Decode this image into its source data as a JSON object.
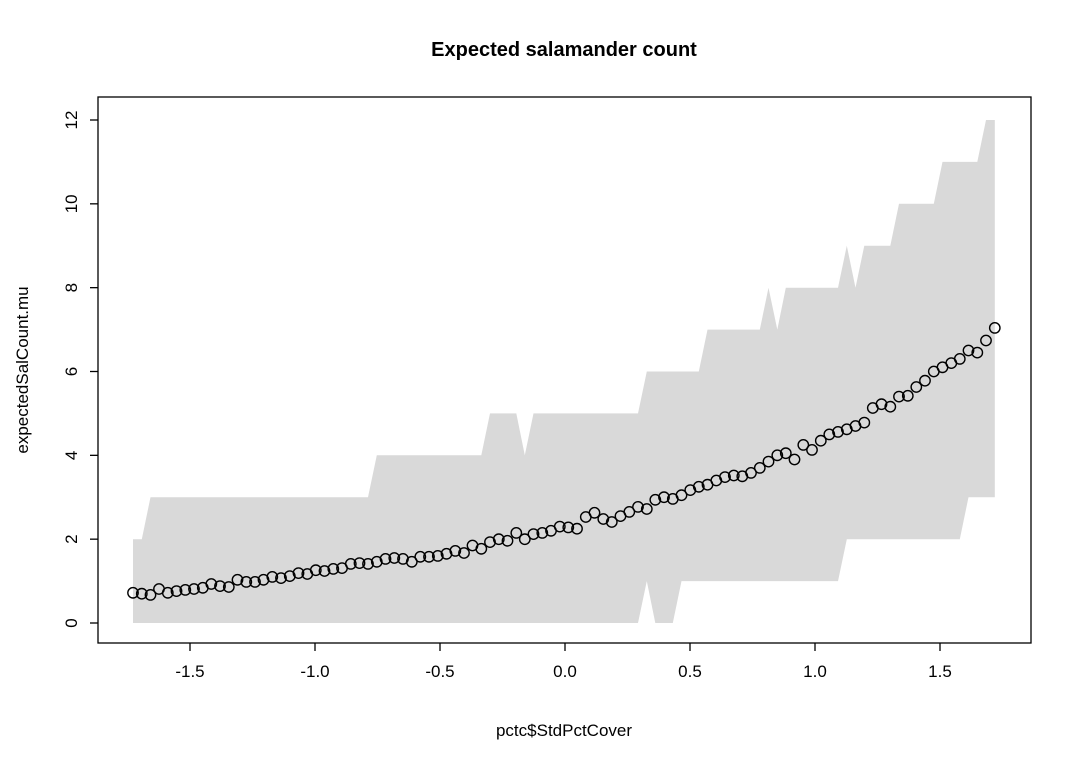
{
  "title": "Expected salamander count",
  "xlabel": "pctc$StdPctCover",
  "ylabel": "expectedSalCount.mu",
  "colors": {
    "band": "#d9d9d9",
    "point_stroke": "#000000",
    "axis": "#000000",
    "background": "#ffffff"
  },
  "axes": {
    "x_ticks": {
      "values": [
        -1.5,
        -1.0,
        -0.5,
        0.0,
        0.5,
        1.0,
        1.5
      ],
      "labels": [
        "-1.5",
        "-1.0",
        "-0.5",
        "0.0",
        "0.5",
        "1.0",
        "1.5"
      ]
    },
    "y_ticks": {
      "values": [
        0,
        2,
        4,
        6,
        8,
        10,
        12
      ],
      "labels": [
        "0",
        "2",
        "4",
        "6",
        "8",
        "10",
        "12"
      ]
    }
  },
  "chart_data": {
    "type": "scatter",
    "title": "Expected salamander count",
    "xlabel": "pctc$StdPctCover",
    "ylabel": "expectedSalCount.mu",
    "xlim": [
      -1.87,
      1.86
    ],
    "ylim": [
      -0.48,
      12.55
    ],
    "grid": false,
    "legend": false,
    "marker": "open-circle",
    "band_style": "solid gray step polygon behind points",
    "x": [
      -1.728,
      -1.693,
      -1.658,
      -1.624,
      -1.589,
      -1.554,
      -1.519,
      -1.484,
      -1.449,
      -1.415,
      -1.38,
      -1.345,
      -1.31,
      -1.275,
      -1.24,
      -1.206,
      -1.171,
      -1.136,
      -1.101,
      -1.066,
      -1.031,
      -0.997,
      -0.962,
      -0.927,
      -0.892,
      -0.857,
      -0.822,
      -0.788,
      -0.753,
      -0.718,
      -0.683,
      -0.648,
      -0.613,
      -0.579,
      -0.544,
      -0.509,
      -0.474,
      -0.439,
      -0.404,
      -0.37,
      -0.335,
      -0.3,
      -0.265,
      -0.23,
      -0.195,
      -0.161,
      -0.126,
      -0.091,
      -0.056,
      -0.021,
      0.013,
      0.048,
      0.083,
      0.118,
      0.153,
      0.187,
      0.222,
      0.257,
      0.292,
      0.327,
      0.361,
      0.396,
      0.431,
      0.466,
      0.501,
      0.535,
      0.57,
      0.605,
      0.64,
      0.675,
      0.709,
      0.744,
      0.779,
      0.814,
      0.849,
      0.883,
      0.918,
      0.953,
      0.988,
      1.023,
      1.057,
      1.092,
      1.127,
      1.162,
      1.197,
      1.231,
      1.266,
      1.301,
      1.336,
      1.371,
      1.405,
      1.44,
      1.475,
      1.51,
      1.545,
      1.579,
      1.614,
      1.649,
      1.684,
      1.719
    ],
    "series": [
      {
        "name": "expectedSalCount.mu",
        "values": [
          0.72,
          0.7,
          0.67,
          0.81,
          0.72,
          0.76,
          0.79,
          0.81,
          0.84,
          0.93,
          0.88,
          0.86,
          1.03,
          0.98,
          0.98,
          1.03,
          1.1,
          1.07,
          1.12,
          1.19,
          1.17,
          1.26,
          1.24,
          1.29,
          1.31,
          1.41,
          1.43,
          1.41,
          1.46,
          1.53,
          1.55,
          1.53,
          1.46,
          1.58,
          1.58,
          1.6,
          1.65,
          1.72,
          1.67,
          1.85,
          1.77,
          1.93,
          2.0,
          1.96,
          2.15,
          2.0,
          2.12,
          2.15,
          2.2,
          2.3,
          2.28,
          2.25,
          2.53,
          2.63,
          2.48,
          2.41,
          2.55,
          2.65,
          2.77,
          2.72,
          2.94,
          3.0,
          2.96,
          3.05,
          3.17,
          3.25,
          3.3,
          3.4,
          3.48,
          3.52,
          3.5,
          3.58,
          3.7,
          3.85,
          4.0,
          4.05,
          3.9,
          4.25,
          4.13,
          4.35,
          4.5,
          4.56,
          4.62,
          4.7,
          4.78,
          5.13,
          5.22,
          5.16,
          5.4,
          5.42,
          5.63,
          5.78,
          6.0,
          6.1,
          6.2,
          6.3,
          6.5,
          6.45,
          6.74,
          7.04
        ]
      },
      {
        "name": "band upper",
        "values": [
          2,
          2,
          3,
          3,
          3,
          3,
          3,
          3,
          3,
          3,
          3,
          3,
          3,
          3,
          3,
          3,
          3,
          3,
          3,
          3,
          3,
          3,
          3,
          3,
          3,
          3,
          3,
          3,
          4,
          4,
          4,
          4,
          4,
          4,
          4,
          4,
          4,
          4,
          4,
          4,
          4,
          5,
          5,
          5,
          5,
          4,
          5,
          5,
          5,
          5,
          5,
          5,
          5,
          5,
          5,
          5,
          5,
          5,
          5,
          6,
          6,
          6,
          6,
          6,
          6,
          6,
          7,
          7,
          7,
          7,
          7,
          7,
          7,
          8,
          7,
          8,
          8,
          8,
          8,
          8,
          8,
          8,
          9,
          8,
          9,
          9,
          9,
          9,
          10,
          10,
          10,
          10,
          10,
          11,
          11,
          11,
          11,
          11,
          12,
          12
        ]
      },
      {
        "name": "band lower",
        "values": [
          0,
          0,
          0,
          0,
          0,
          0,
          0,
          0,
          0,
          0,
          0,
          0,
          0,
          0,
          0,
          0,
          0,
          0,
          0,
          0,
          0,
          0,
          0,
          0,
          0,
          0,
          0,
          0,
          0,
          0,
          0,
          0,
          0,
          0,
          0,
          0,
          0,
          0,
          0,
          0,
          0,
          0,
          0,
          0,
          0,
          0,
          0,
          0,
          0,
          0,
          0,
          0,
          0,
          0,
          0,
          0,
          0,
          0,
          0,
          1,
          0,
          0,
          0,
          1,
          1,
          1,
          1,
          1,
          1,
          1,
          1,
          1,
          1,
          1,
          1,
          1,
          1,
          1,
          1,
          1,
          1,
          1,
          2,
          2,
          2,
          2,
          2,
          2,
          2,
          2,
          2,
          2,
          2,
          2,
          2,
          2,
          3,
          3,
          3,
          3
        ]
      }
    ]
  }
}
